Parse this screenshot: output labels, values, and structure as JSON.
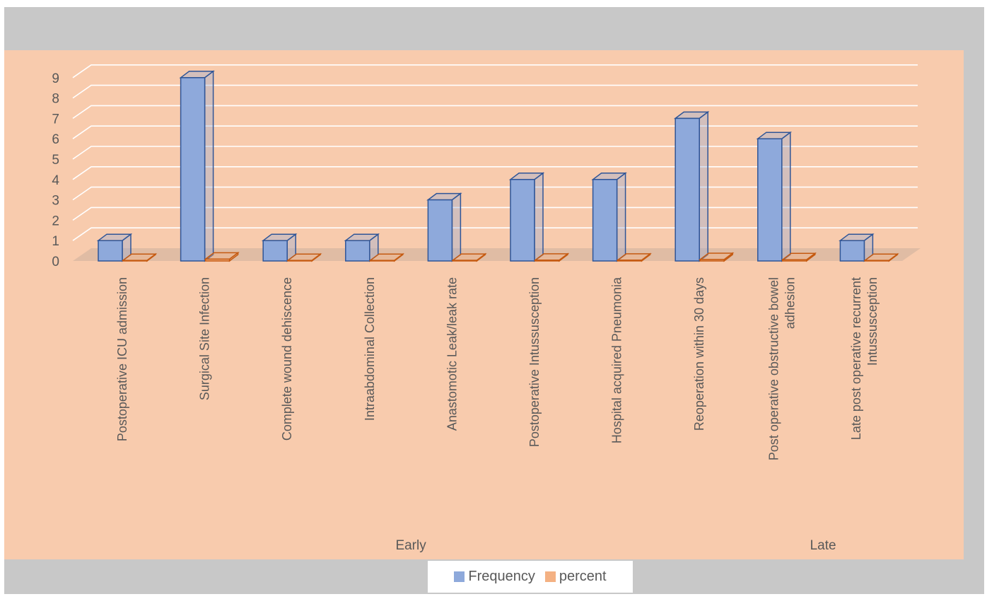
{
  "chart_data": {
    "type": "bar",
    "style": "3d-clustered-column",
    "categories": [
      "Postoperative ICU admission",
      "Surgical Site Infection",
      "Complete wound dehiscence",
      "Intraabdominal Collection",
      "Anastomotic Leak/leak rate",
      "Postoperative Intussusception",
      "Hospital acquired Pneumonia",
      "Reoperation within 30 days",
      "Post operative obstructive bowel adhesion",
      "Late post operative recurrent Intussusception"
    ],
    "category_label_lines": [
      [
        "Postoperative ICU admission"
      ],
      [
        "Surgical Site Infection"
      ],
      [
        "Complete wound dehiscence"
      ],
      [
        "Intraabdominal Collection"
      ],
      [
        "Anastomotic Leak/leak rate"
      ],
      [
        "Postoperative Intussusception"
      ],
      [
        "Hospital acquired Pneumonia"
      ],
      [
        "Reoperation within 30 days"
      ],
      [
        "Post operative obstructive bowel",
        "adhesion"
      ],
      [
        "Late post operative recurrent",
        "Intussusception"
      ]
    ],
    "groups": [
      {
        "label": "Early",
        "start": 0,
        "end": 7
      },
      {
        "label": "Late",
        "start": 8,
        "end": 9
      }
    ],
    "series": [
      {
        "name": "Frequency",
        "values": [
          1,
          9,
          1,
          1,
          3,
          4,
          4,
          7,
          6,
          1
        ],
        "color": "#8ea9db",
        "edge": "#2f5597"
      },
      {
        "name": "percent",
        "values": [
          0.01,
          0.09,
          0.01,
          0.01,
          0.03,
          0.04,
          0.04,
          0.07,
          0.06,
          0.01
        ],
        "color": "#f4b183",
        "edge": "#c55a11"
      }
    ],
    "ylim": [
      0,
      9
    ],
    "yticks": [
      "0",
      "1",
      "2",
      "3",
      "4",
      "5",
      "6",
      "7",
      "8",
      "9"
    ],
    "title": "",
    "xlabel": "",
    "ylabel": "",
    "grid": true,
    "legend_position": "bottom",
    "colors": {
      "outer_background": "#c8c8c8",
      "plot_background": "#f8cbad",
      "gridline": "#ffffff",
      "floor": "#e0bca4",
      "text": "#595959"
    }
  }
}
